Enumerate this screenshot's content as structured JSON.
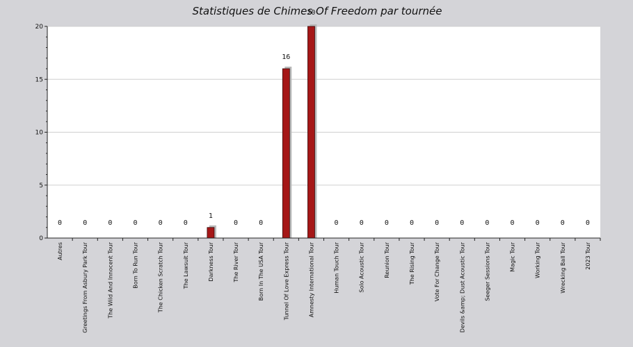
{
  "chart_data": {
    "type": "bar",
    "title": "Statistiques de Chimes Of Freedom par tournée",
    "categories": [
      "Autres",
      "Greetings From Asbury Park Tour",
      "The Wild And Innocent Tour",
      "Born To Run Tour",
      "The Chicken Scratch Tour",
      "The Lawsuit Tour",
      "Darkness Tour",
      "The River Tour",
      "Born In The USA Tour",
      "Tunnel Of Love Express Tour",
      "Amnesty International Tour",
      "Human Touch Tour",
      "Solo Acoustic Tour",
      "Reunion Tour",
      "The Rising Tour",
      "Vote For Change Tour",
      "Devils &amp; Dust Acoustic Tour",
      "Seeger Sessions Tour",
      "Magic Tour",
      "Working Tour",
      "Wrecking Ball Tour",
      "2023 Tour"
    ],
    "values": [
      0,
      0,
      0,
      0,
      0,
      0,
      1,
      0,
      0,
      16,
      20,
      0,
      0,
      0,
      0,
      0,
      0,
      0,
      0,
      0,
      0,
      0
    ],
    "ylim": [
      0,
      20
    ],
    "yticks": [
      0,
      5,
      10,
      15,
      20
    ],
    "grid": true,
    "bar_color": "#a51717",
    "xlabel": "",
    "ylabel": ""
  }
}
